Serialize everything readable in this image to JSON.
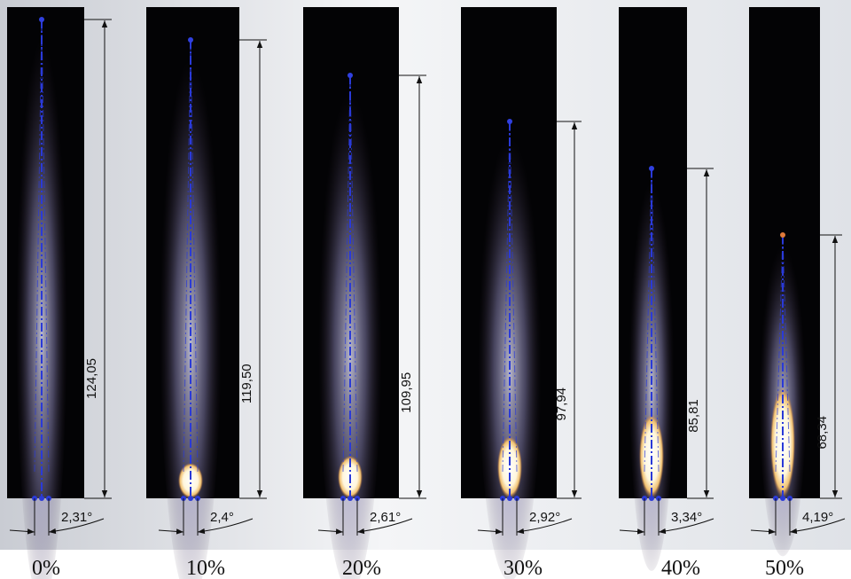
{
  "panels": [
    {
      "label": "0%",
      "length": "124,05",
      "angle": "2,31°"
    },
    {
      "label": "10%",
      "length": "119,50",
      "angle": "2,4°"
    },
    {
      "label": "20%",
      "length": "109,95",
      "angle": "2,61°"
    },
    {
      "label": "30%",
      "length": "97,94",
      "angle": "2,92°"
    },
    {
      "label": "40%",
      "length": "85,81",
      "angle": "3,34°"
    },
    {
      "label": "50%",
      "length": "68,34",
      "angle": "4,19°"
    }
  ]
}
